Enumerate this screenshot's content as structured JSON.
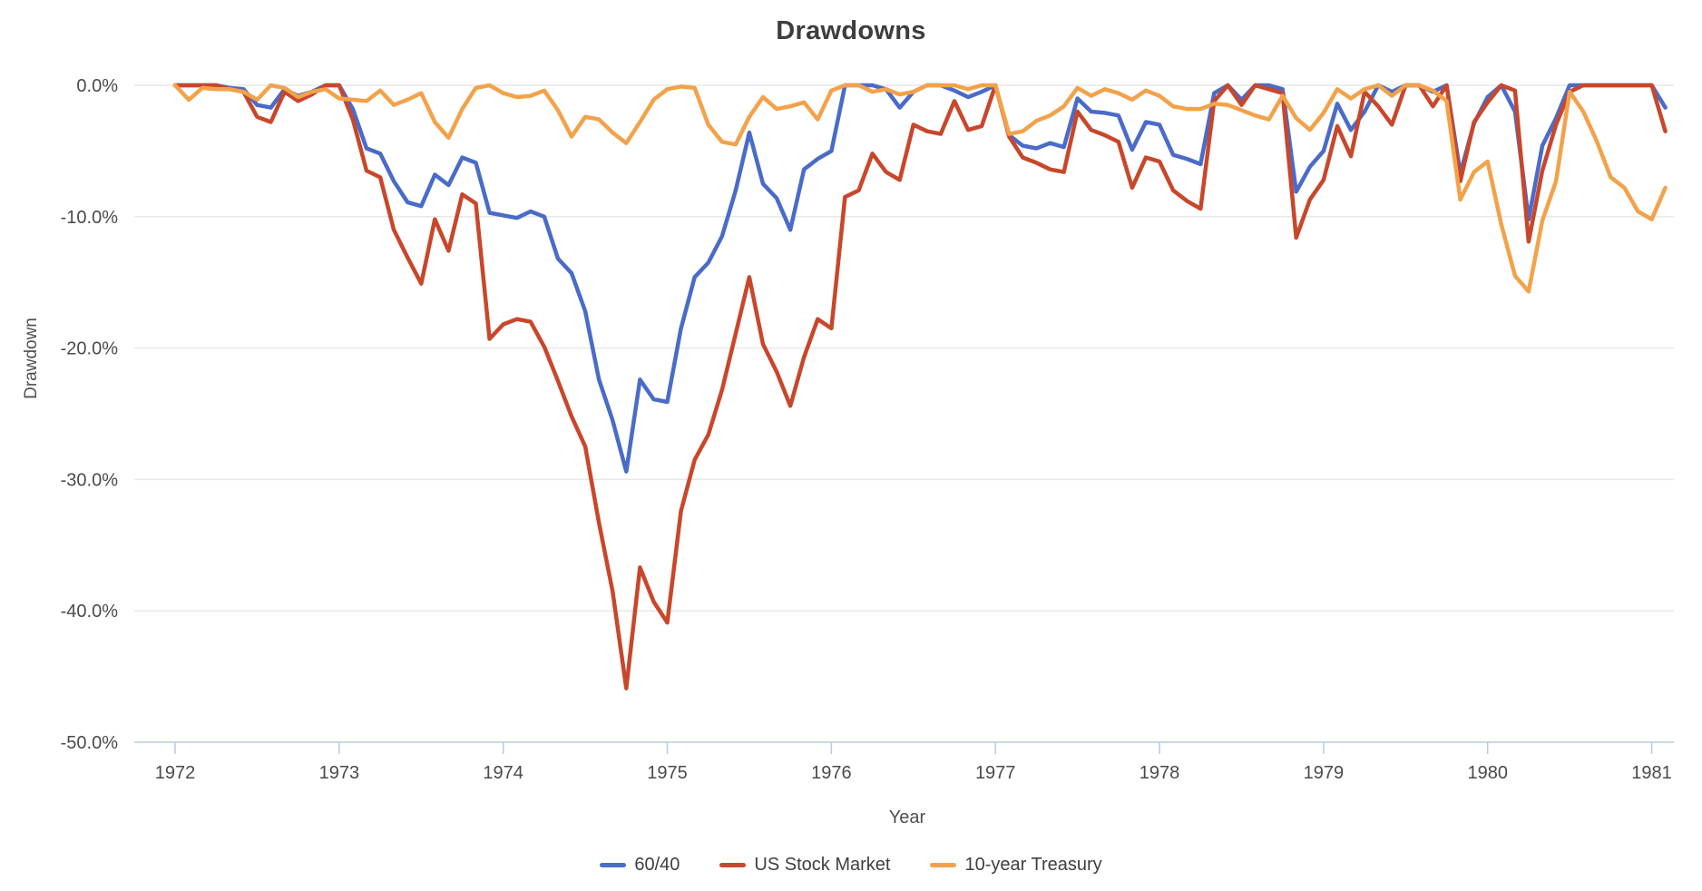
{
  "title": "Drawdowns",
  "y_axis": {
    "title": "Drawdown",
    "ticks": [
      "0.0%",
      "-10.0%",
      "-20.0%",
      "-30.0%",
      "-40.0%",
      "-50.0%"
    ]
  },
  "x_axis": {
    "title": "Year",
    "ticks": [
      "1972",
      "1973",
      "1974",
      "1975",
      "1976",
      "1977",
      "1978",
      "1979",
      "1980",
      "1981"
    ]
  },
  "style": {
    "grid_color": "#e8e8e8",
    "axis_line_color": "#c8d7ec",
    "tick_color": "#b5cae8",
    "tick_label_color": "#4a4a4a",
    "title_color": "#3d3d3d"
  },
  "chart_data": {
    "type": "line",
    "frequency": "monthly",
    "x_start": "1972-01",
    "x_end": "1981-01",
    "xlabel": "Year",
    "ylabel": "Drawdown",
    "ylim": [
      -50,
      0
    ],
    "grid": "horizontal",
    "legend_position": "bottom-center",
    "series": [
      {
        "name": "60/40",
        "color": "#4a6bc8",
        "values": [
          0,
          0,
          0,
          0,
          -0.2,
          -0.3,
          -1.5,
          -1.7,
          -0.3,
          -0.8,
          -0.5,
          0,
          0,
          -1.8,
          -4.8,
          -5.2,
          -7.3,
          -8.9,
          -9.2,
          -6.8,
          -7.6,
          -5.5,
          -5.9,
          -9.7,
          -9.9,
          -10.1,
          -9.6,
          -10.0,
          -13.2,
          -14.3,
          -17.2,
          -22.4,
          -25.5,
          -29.4,
          -22.4,
          -23.9,
          -24.1,
          -18.5,
          -14.6,
          -13.5,
          -11.5,
          -8.0,
          -3.6,
          -7.5,
          -8.6,
          -11.0,
          -6.4,
          -5.6,
          -5.0,
          0,
          0,
          0,
          -0.3,
          -1.7,
          -0.5,
          0,
          0,
          -0.4,
          -0.9,
          -0.5,
          0,
          -3.8,
          -4.6,
          -4.8,
          -4.4,
          -4.7,
          -1.0,
          -2.0,
          -2.1,
          -2.3,
          -4.9,
          -2.8,
          -3.0,
          -5.3,
          -5.6,
          -6.0,
          -0.6,
          0,
          -1.1,
          0,
          0,
          -0.3,
          -8.1,
          -6.2,
          -5.0,
          -1.4,
          -3.4,
          -2.0,
          0,
          -0.5,
          0,
          0,
          -0.5,
          0,
          -6.7,
          -2.9,
          -0.9,
          0,
          -2.0,
          -10.2,
          -4.6,
          -2.5,
          0,
          0,
          0,
          0,
          0,
          0,
          0,
          -1.7
        ]
      },
      {
        "name": "US Stock Market",
        "color": "#c8472b",
        "values": [
          0,
          0,
          0,
          0,
          -0.3,
          -0.5,
          -2.4,
          -2.8,
          -0.5,
          -1.2,
          -0.7,
          0,
          0,
          -2.6,
          -6.5,
          -7.0,
          -11.0,
          -13.1,
          -15.1,
          -10.2,
          -12.6,
          -8.3,
          -9.0,
          -19.3,
          -18.2,
          -17.8,
          -18.0,
          -19.9,
          -22.5,
          -25.2,
          -27.5,
          -33.3,
          -38.5,
          -45.9,
          -36.7,
          -39.3,
          -40.9,
          -32.4,
          -28.5,
          -26.6,
          -23.2,
          -18.9,
          -14.6,
          -19.7,
          -21.8,
          -24.4,
          -20.7,
          -17.8,
          -18.5,
          -8.5,
          -8.0,
          -5.2,
          -6.6,
          -7.2,
          -3.0,
          -3.5,
          -3.7,
          -1.2,
          -3.4,
          -3.1,
          0,
          -3.9,
          -5.5,
          -5.9,
          -6.4,
          -6.6,
          -2.0,
          -3.4,
          -3.8,
          -4.3,
          -7.8,
          -5.5,
          -5.8,
          -8.0,
          -8.8,
          -9.4,
          -1.2,
          0,
          -1.5,
          0,
          -0.3,
          -0.6,
          -11.6,
          -8.7,
          -7.2,
          -3.1,
          -5.4,
          -0.5,
          -1.6,
          -3.0,
          0,
          0,
          -1.6,
          0,
          -7.3,
          -2.8,
          -1.3,
          0,
          -0.4,
          -11.9,
          -6.5,
          -3.0,
          -0.5,
          0,
          0,
          0,
          0,
          0,
          0,
          -3.5
        ]
      },
      {
        "name": "10-year Treasury",
        "color": "#f2a24a",
        "values": [
          0,
          -1.1,
          -0.2,
          -0.3,
          -0.3,
          -0.5,
          -1.1,
          0,
          -0.2,
          -0.9,
          -0.5,
          -0.3,
          -1.0,
          -1.1,
          -1.2,
          -0.4,
          -1.5,
          -1.1,
          -0.6,
          -2.8,
          -4.0,
          -1.8,
          -0.2,
          0,
          -0.6,
          -0.9,
          -0.8,
          -0.4,
          -1.9,
          -3.9,
          -2.4,
          -2.6,
          -3.6,
          -4.4,
          -2.8,
          -1.1,
          -0.3,
          -0.1,
          -0.2,
          -3.0,
          -4.3,
          -4.5,
          -2.4,
          -0.9,
          -1.8,
          -1.6,
          -1.3,
          -2.6,
          -0.4,
          0,
          0,
          -0.5,
          -0.3,
          -0.7,
          -0.5,
          0,
          0,
          0,
          -0.3,
          0,
          0,
          -3.7,
          -3.5,
          -2.7,
          -2.3,
          -1.6,
          -0.2,
          -0.8,
          -0.3,
          -0.6,
          -1.1,
          -0.4,
          -0.8,
          -1.6,
          -1.8,
          -1.8,
          -1.4,
          -1.5,
          -1.9,
          -2.3,
          -2.6,
          -0.8,
          -2.5,
          -3.4,
          -2.1,
          -0.3,
          -1.0,
          -0.3,
          0,
          -0.8,
          0,
          0,
          -0.4,
          -1.2,
          -8.7,
          -6.6,
          -5.8,
          -10.6,
          -14.5,
          -15.7,
          -10.3,
          -7.3,
          -0.5,
          -2.0,
          -4.3,
          -7.0,
          -7.8,
          -9.6,
          -10.2,
          -7.8
        ]
      }
    ]
  }
}
